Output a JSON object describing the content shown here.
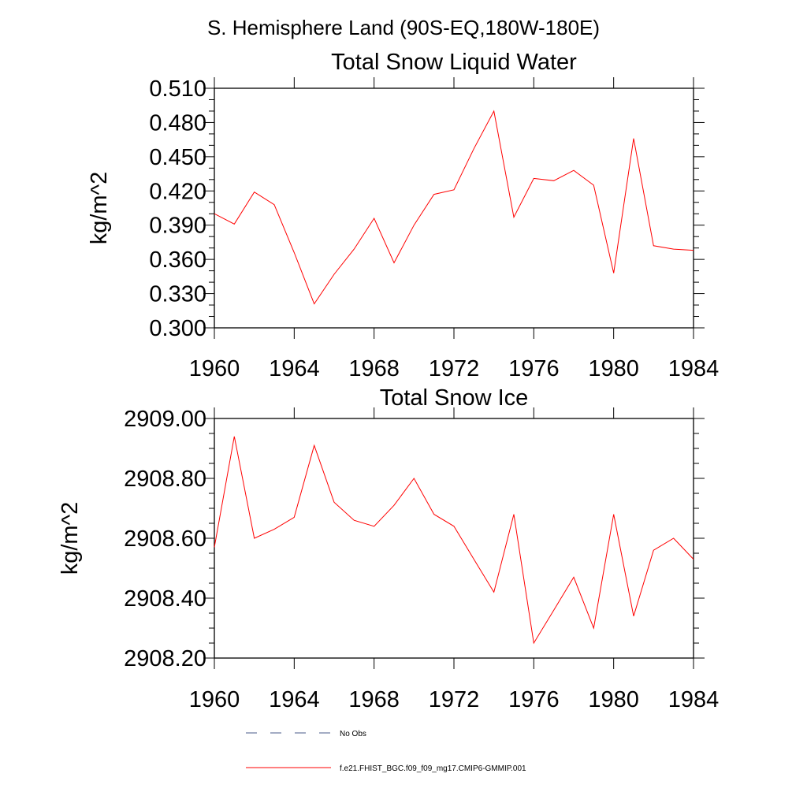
{
  "figure": {
    "title": "S. Hemisphere Land (90S-EQ,180W-180E)"
  },
  "chart_data": [
    {
      "type": "line",
      "title": "Total Snow Liquid Water",
      "xlabel": "",
      "ylabel": "kg/m^2",
      "xlim": [
        1960,
        1984
      ],
      "ylim": [
        0.3,
        0.51
      ],
      "x_ticks": [
        1960,
        1964,
        1968,
        1972,
        1976,
        1980,
        1984
      ],
      "x_tick_labels": [
        "1960",
        "1964",
        "1968",
        "1972",
        "1976",
        "1980",
        "1984"
      ],
      "y_ticks": [
        0.3,
        0.33,
        0.36,
        0.39,
        0.42,
        0.45,
        0.48,
        0.51
      ],
      "y_tick_labels": [
        "0.300",
        "0.330",
        "0.360",
        "0.390",
        "0.420",
        "0.450",
        "0.480",
        "0.510"
      ],
      "grid": false,
      "series": [
        {
          "name": "f.e21.FHIST_BGC.f09_f09_mg17.CMIP6-GMMIP.001",
          "color": "#ff0000",
          "x": [
            1960,
            1961,
            1962,
            1963,
            1964,
            1965,
            1966,
            1967,
            1968,
            1969,
            1970,
            1971,
            1972,
            1973,
            1974,
            1975,
            1976,
            1977,
            1978,
            1979,
            1980,
            1981,
            1982,
            1983,
            1984
          ],
          "values": [
            0.4,
            0.391,
            0.419,
            0.408,
            0.366,
            0.321,
            0.347,
            0.369,
            0.396,
            0.357,
            0.39,
            0.417,
            0.421,
            0.457,
            0.49,
            0.397,
            0.431,
            0.429,
            0.438,
            0.425,
            0.348,
            0.466,
            0.372,
            0.369,
            0.368
          ]
        }
      ]
    },
    {
      "type": "line",
      "title": "Total Snow Ice",
      "xlabel": "",
      "ylabel": "kg/m^2",
      "xlim": [
        1960,
        1984
      ],
      "ylim": [
        2908.2,
        2909.0
      ],
      "x_ticks": [
        1960,
        1964,
        1968,
        1972,
        1976,
        1980,
        1984
      ],
      "x_tick_labels": [
        "1960",
        "1964",
        "1968",
        "1972",
        "1976",
        "1980",
        "1984"
      ],
      "y_ticks": [
        2908.2,
        2908.4,
        2908.6,
        2908.8,
        2909.0
      ],
      "y_tick_labels": [
        "2908.20",
        "2908.40",
        "2908.60",
        "2908.80",
        "2909.00"
      ],
      "grid": false,
      "series": [
        {
          "name": "f.e21.FHIST_BGC.f09_f09_mg17.CMIP6-GMMIP.001",
          "color": "#ff0000",
          "x": [
            1960,
            1961,
            1962,
            1963,
            1964,
            1965,
            1966,
            1967,
            1968,
            1969,
            1970,
            1971,
            1972,
            1973,
            1974,
            1975,
            1976,
            1977,
            1978,
            1979,
            1980,
            1981,
            1982,
            1983,
            1984
          ],
          "values": [
            2908.57,
            2908.94,
            2908.6,
            2908.63,
            2908.67,
            2908.91,
            2908.72,
            2908.66,
            2908.64,
            2908.71,
            2908.8,
            2908.68,
            2908.64,
            2908.53,
            2908.42,
            2908.68,
            2908.25,
            2908.36,
            2908.47,
            2908.3,
            2908.68,
            2908.34,
            2908.56,
            2908.6,
            2908.53
          ]
        }
      ]
    }
  ],
  "legend": {
    "items": [
      {
        "label": "No Obs",
        "style": "dashed",
        "color": "#4a5a8a"
      },
      {
        "label": "f.e21.FHIST_BGC.f09_f09_mg17.CMIP6-GMMIP.001",
        "style": "solid",
        "color": "#ff0000"
      }
    ]
  }
}
